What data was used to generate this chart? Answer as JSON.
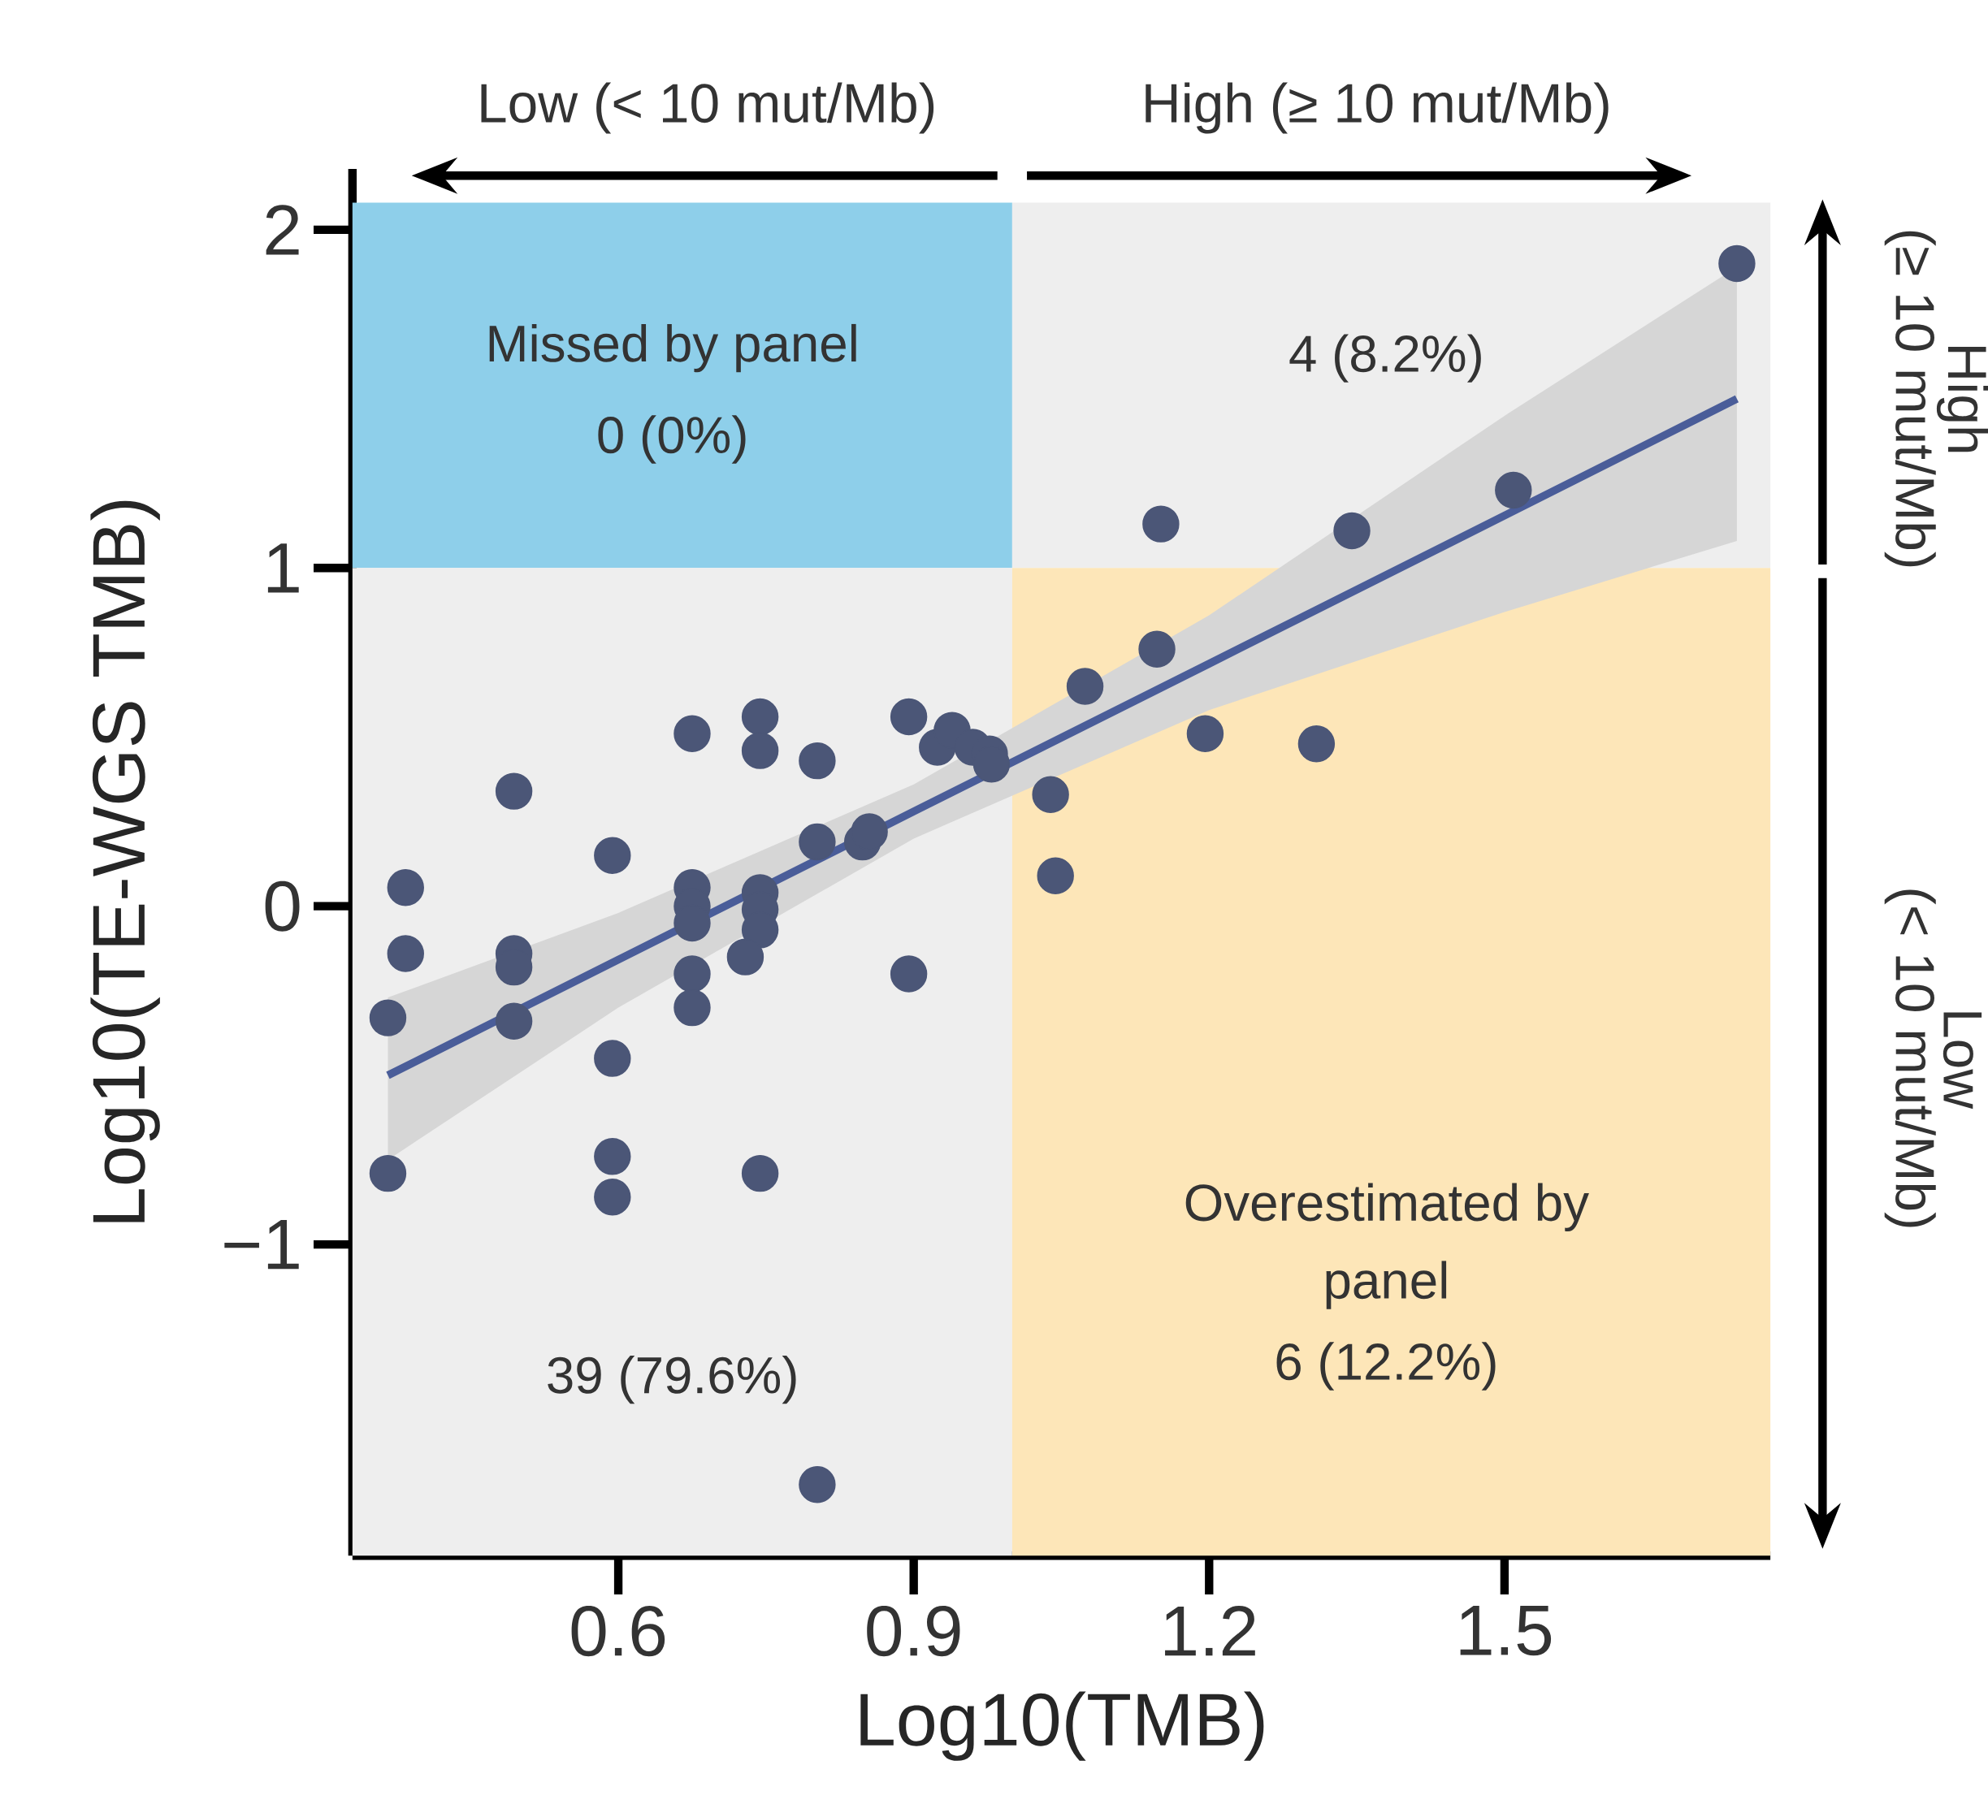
{
  "chart_data": {
    "type": "scatter",
    "xlabel": "Log10(TMB)",
    "ylabel": "Log10(TE-WGS TMB)",
    "xlim": [
      0.33,
      1.77
    ],
    "ylim": [
      -1.92,
      2.18
    ],
    "xticks": [
      0.6,
      0.9,
      1.2,
      1.5
    ],
    "yticks": [
      {
        "value": -1,
        "label": "−1"
      },
      0,
      1,
      2
    ],
    "series": [
      {
        "marker": "circle",
        "color": "#4b5677",
        "x": [
          0.366,
          0.384,
          0.384,
          0.366,
          0.494,
          0.494,
          0.494,
          0.494,
          0.594,
          0.594,
          0.594,
          0.594,
          0.675,
          0.675,
          0.675,
          0.675,
          0.675,
          0.675,
          0.744,
          0.744,
          0.744,
          0.744,
          0.744,
          0.729,
          0.744,
          0.802,
          0.802,
          0.802,
          0.848,
          0.855,
          0.895,
          0.895,
          0.924,
          0.939,
          0.96,
          0.977,
          0.979,
          1.039,
          1.044,
          1.074,
          1.147,
          1.151,
          1.196,
          1.309,
          1.345,
          1.509,
          1.736
        ],
        "values": [
          -0.33,
          0.055,
          -0.14,
          -0.79,
          0.34,
          -0.14,
          -0.18,
          -0.34,
          0.15,
          -0.45,
          -0.74,
          -0.86,
          0.51,
          0.055,
          0.0,
          -0.05,
          -0.2,
          -0.3,
          0.56,
          0.46,
          0.04,
          -0.01,
          -0.07,
          -0.15,
          -0.79,
          0.43,
          0.19,
          -1.71,
          0.19,
          0.22,
          0.56,
          -0.2,
          0.47,
          0.52,
          0.47,
          0.45,
          0.42,
          0.33,
          0.09,
          0.65,
          0.76,
          1.13,
          0.51,
          0.48,
          1.11,
          1.23,
          1.9
        ]
      },
      {
        "type": "line",
        "color": "#4a5d99",
        "x": [
          0.366,
          0.6,
          0.9,
          1.2,
          1.5,
          1.736
        ],
        "values": [
          -0.5,
          -0.158,
          0.28,
          0.717,
          1.155,
          1.5
        ],
        "lower": [
          -0.75,
          -0.3,
          0.2,
          0.58,
          0.87,
          1.08
        ],
        "upper": [
          -0.27,
          -0.02,
          0.36,
          0.86,
          1.45,
          1.89
        ]
      }
    ],
    "bands": [
      {
        "axis": "y",
        "from": 1.0,
        "to": 2.08,
        "color": "#8ecfea"
      },
      {
        "axis": "y",
        "from": 1.0,
        "to": 2.08,
        "color": "#eeeeee"
      },
      {
        "axis": "x",
        "from": 0.33,
        "to": 1.0,
        "color": "#eeeeee"
      },
      {
        "axis": "x",
        "from": 1.0,
        "to": 1.77,
        "color": "#fde6b8"
      }
    ],
    "annotations": [
      "Missed by panel",
      "0 (0%)",
      "4 (8.2%)",
      "39 (79.6%)",
      "Overestimated by",
      "panel",
      "6 (12.2%)",
      "Low (< 10 mut/Mb)",
      "High (≥ 10 mut/Mb)",
      "High",
      "(≥ 10 mut/Mb)",
      "Low",
      "(< 10 mut/Mb)"
    ]
  }
}
